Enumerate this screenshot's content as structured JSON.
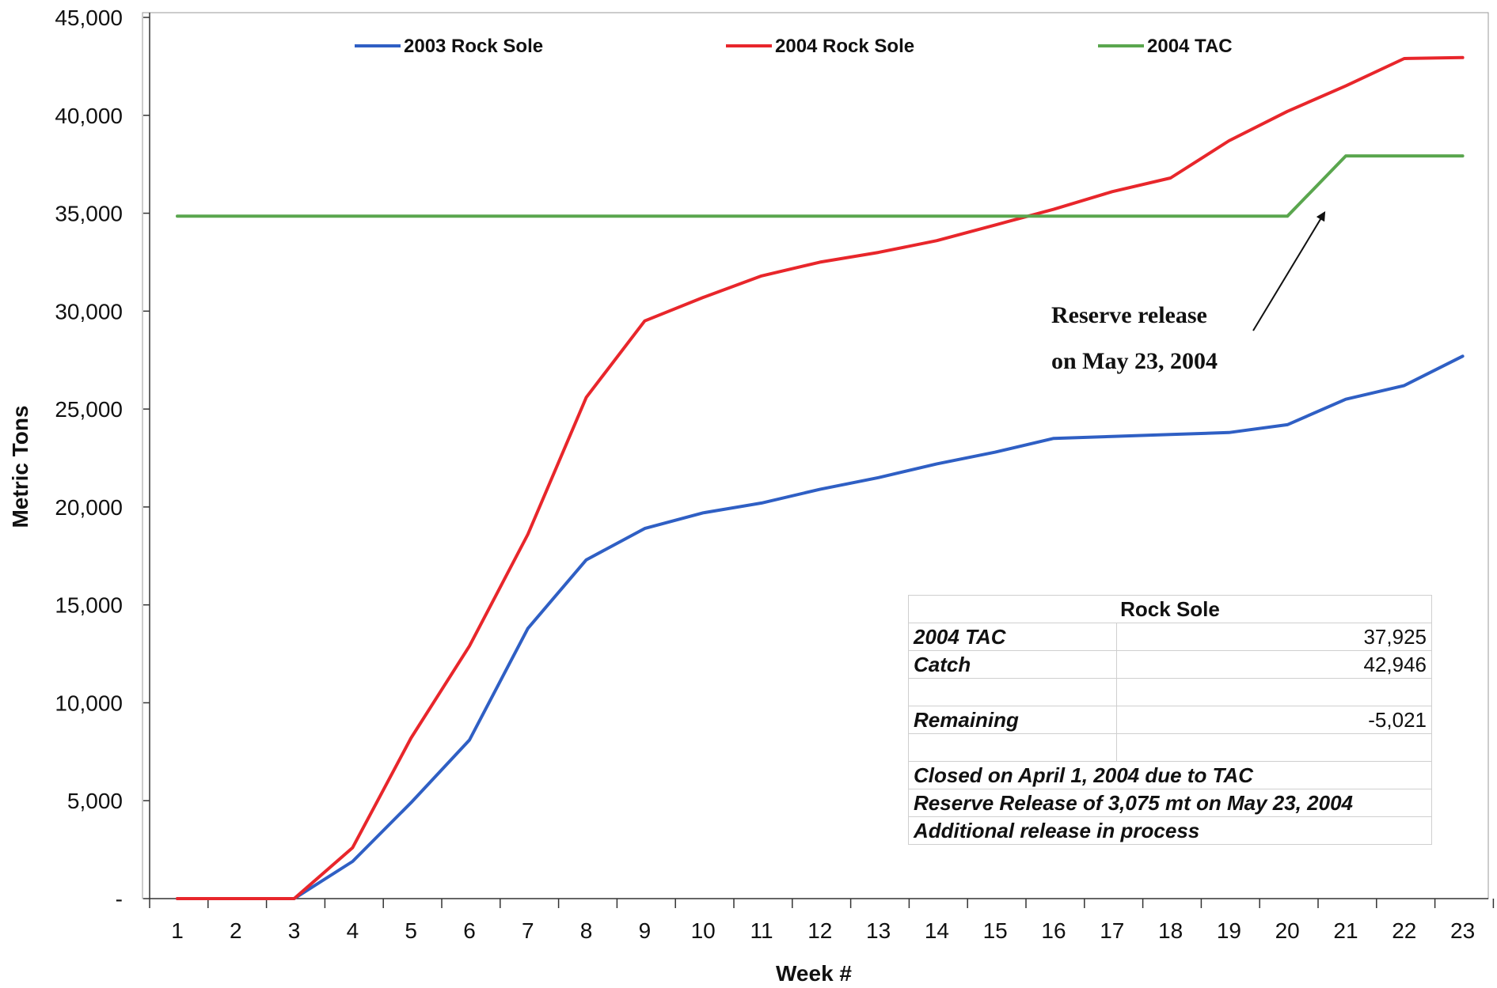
{
  "chart_data": {
    "type": "line",
    "title": "",
    "xlabel": "Week #",
    "ylabel": "Metric Tons",
    "x": [
      1,
      2,
      3,
      4,
      5,
      6,
      7,
      8,
      9,
      10,
      11,
      12,
      13,
      14,
      15,
      16,
      17,
      18,
      19,
      20,
      21,
      22,
      23
    ],
    "x_tick_labels": [
      "1",
      "2",
      "3",
      "4",
      "5",
      "6",
      "7",
      "8",
      "9",
      "10",
      "11",
      "12",
      "13",
      "14",
      "15",
      "16",
      "17",
      "18",
      "19",
      "20",
      "21",
      "22",
      "23"
    ],
    "ylim": [
      0,
      45000
    ],
    "y_ticks": [
      0,
      5000,
      10000,
      15000,
      20000,
      25000,
      30000,
      35000,
      40000,
      45000
    ],
    "y_tick_labels": [
      "-",
      "5,000",
      "10,000",
      "15,000",
      "20,000",
      "25,000",
      "30,000",
      "35,000",
      "40,000",
      "45,000"
    ],
    "grid": false,
    "legend_position": "top",
    "series": [
      {
        "name": "2003 Rock Sole",
        "color": "#2f5fc4",
        "values": [
          0,
          0,
          0,
          1900,
          4900,
          8100,
          13800,
          17300,
          18900,
          19700,
          20200,
          20900,
          21500,
          22200,
          22800,
          23500,
          23600,
          23700,
          23800,
          24200,
          25500,
          26200,
          27700
        ]
      },
      {
        "name": "2004 Rock Sole",
        "color": "#e8262b",
        "values": [
          0,
          0,
          0,
          2600,
          8200,
          12900,
          18600,
          25600,
          29500,
          30700,
          31800,
          32500,
          33000,
          33600,
          34400,
          35200,
          36100,
          36800,
          38700,
          40200,
          41500,
          42900,
          42946
        ]
      },
      {
        "name": "2004 TAC",
        "color": "#5aa64e",
        "values": [
          34850,
          34850,
          34850,
          34850,
          34850,
          34850,
          34850,
          34850,
          34850,
          34850,
          34850,
          34850,
          34850,
          34850,
          34850,
          34850,
          34850,
          34850,
          34850,
          34850,
          37925,
          37925,
          37925
        ]
      }
    ],
    "annotations": [
      {
        "lines": [
          "Reserve release",
          "on May 23, 2004"
        ],
        "arrow_to": {
          "x": 20.5,
          "y": 35600
        }
      }
    ]
  },
  "summary_table": {
    "title": "Rock Sole",
    "rows": [
      {
        "label": "2004 TAC",
        "value": "37,925"
      },
      {
        "label": "Catch",
        "value": "42,946"
      },
      {
        "label": "",
        "value": ""
      },
      {
        "label": "Remaining",
        "value": "-5,021"
      },
      {
        "label": "",
        "value": ""
      }
    ],
    "notes": [
      "Closed on April 1, 2004 due to TAC",
      "Reserve Release of 3,075 mt on May 23, 2004",
      "Additional release in process"
    ]
  }
}
